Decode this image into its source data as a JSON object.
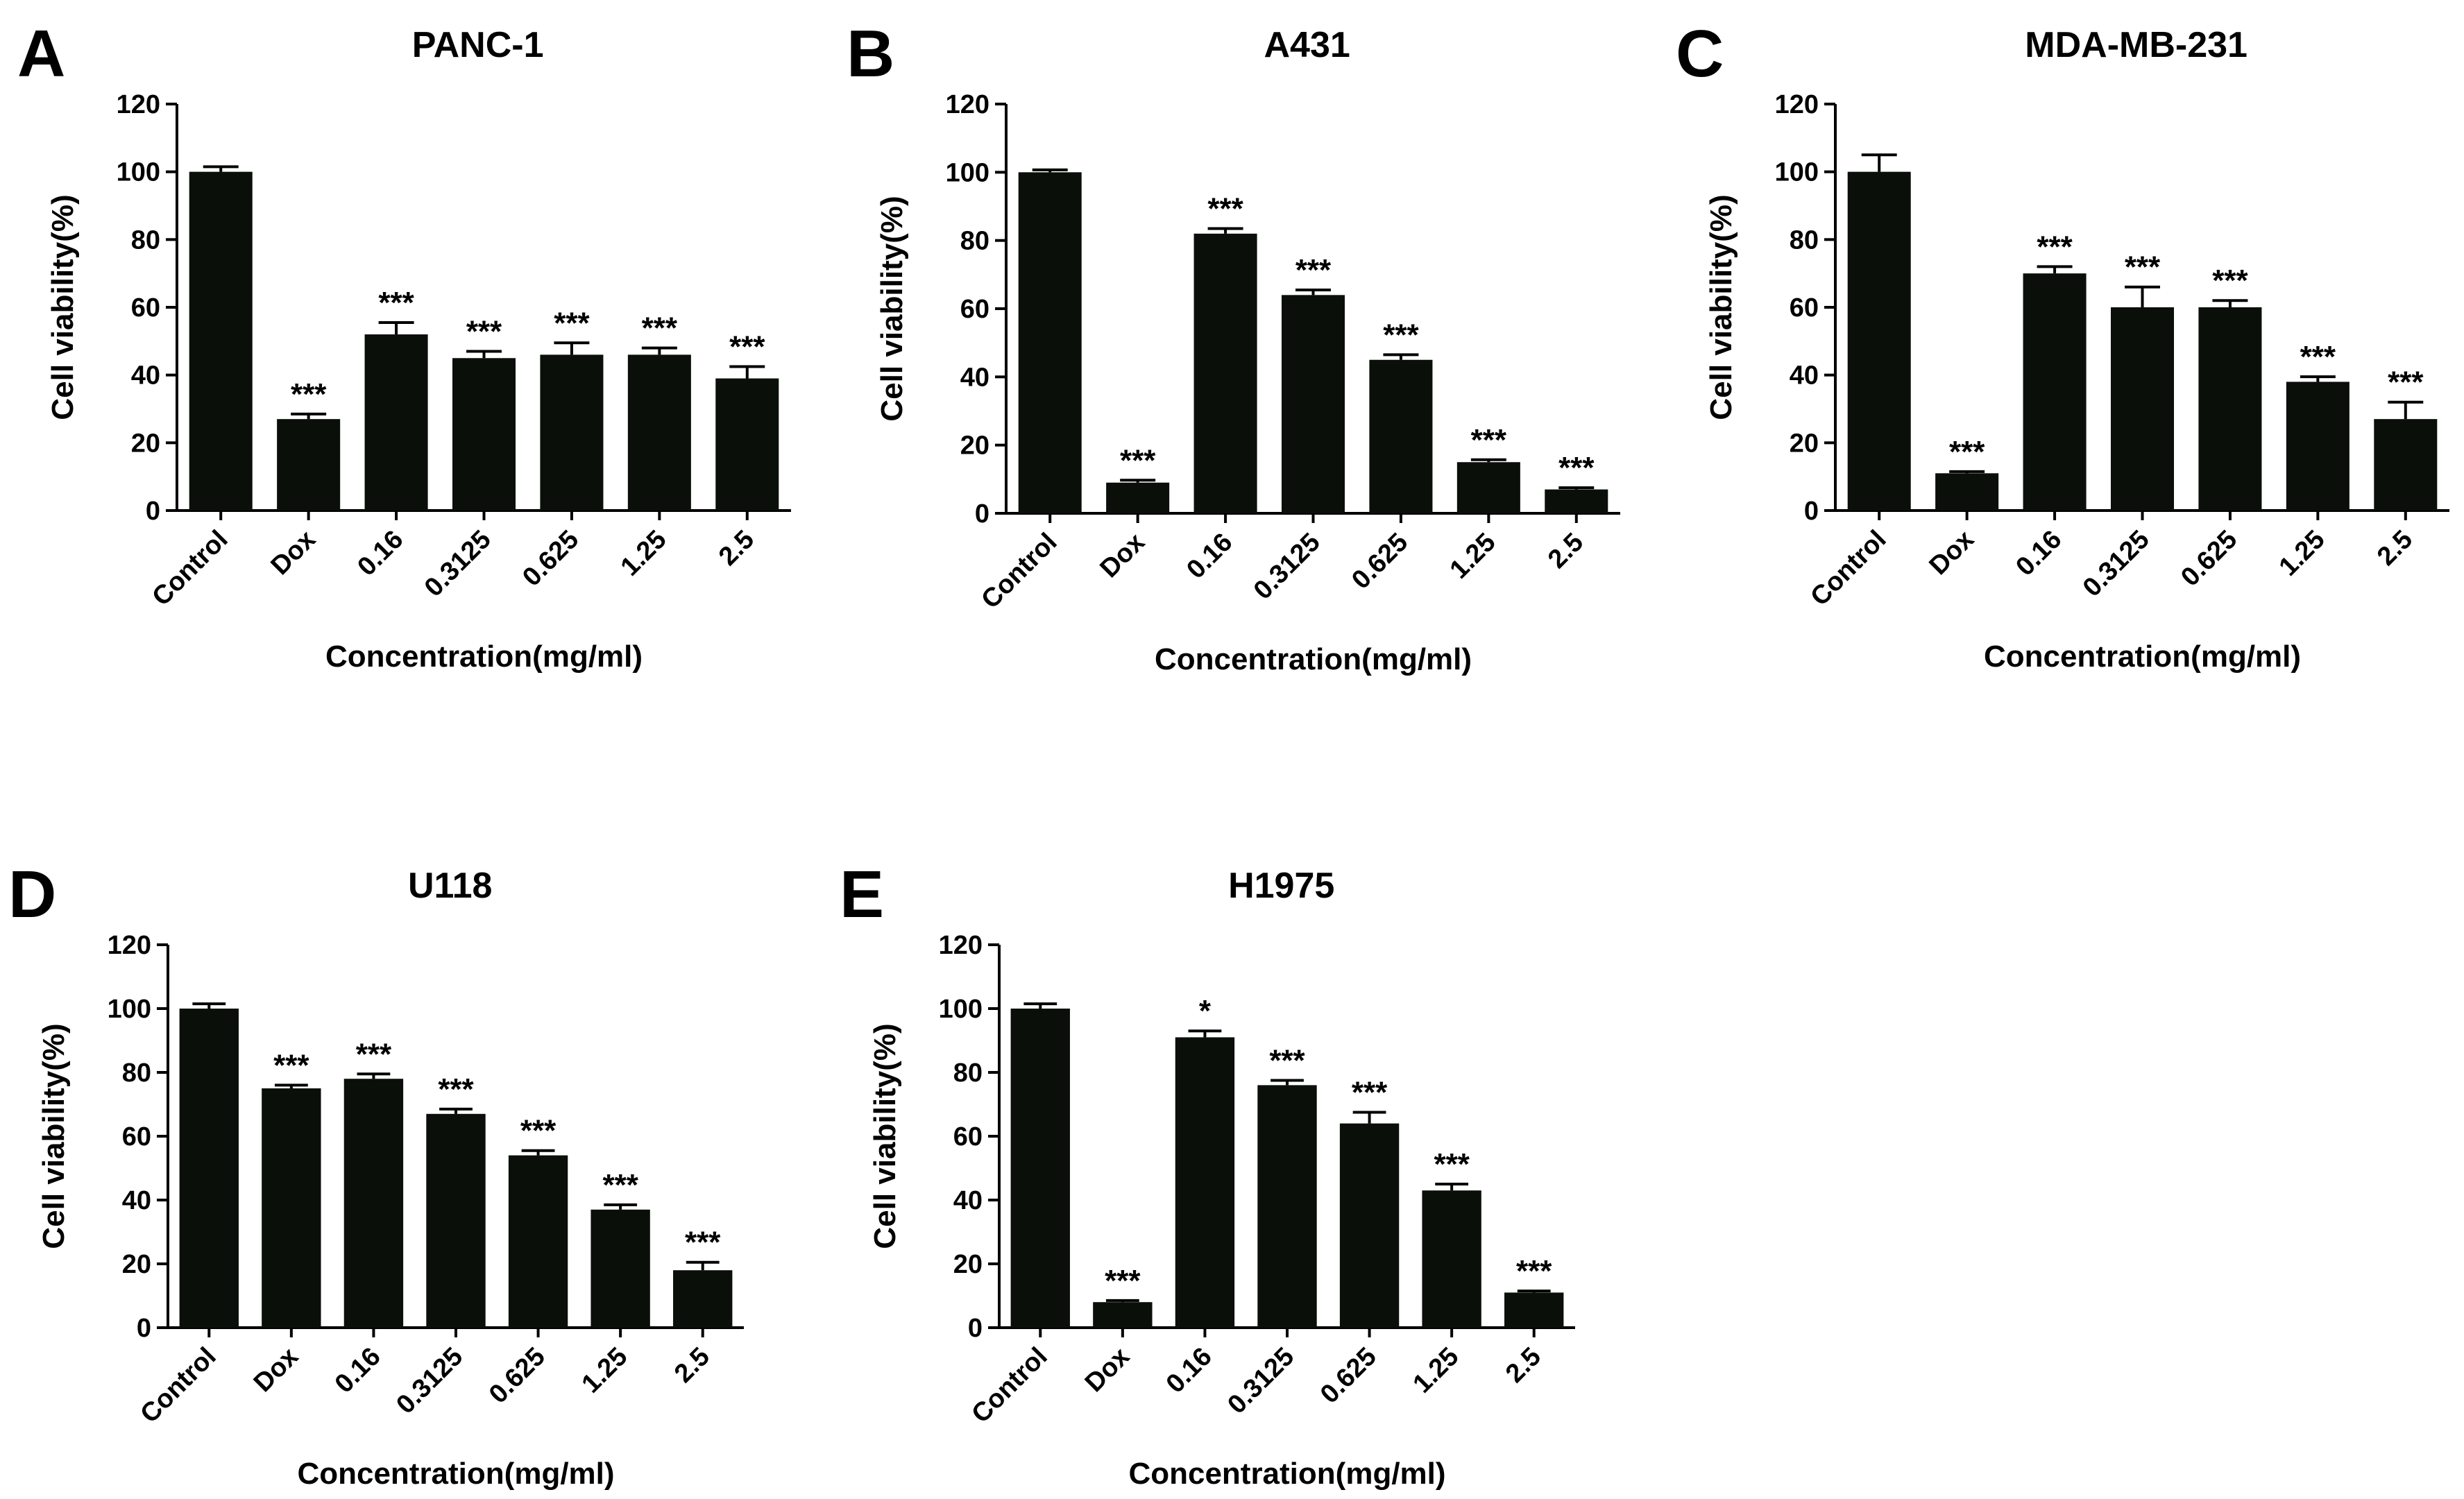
{
  "figure": {
    "chart_data": [
      {
        "type": "bar",
        "panel": "A",
        "title": "PANC-1",
        "xlabel": "Concentration(mg/ml)",
        "ylabel": "Cell viability(%)",
        "ylim": [
          0,
          120
        ],
        "yticks": [
          "0",
          "20",
          "40",
          "60",
          "80",
          "100",
          "120"
        ],
        "categories": [
          "Control",
          "Dox",
          "0.16",
          "0.3125",
          "0.625",
          "1.25",
          "2.5"
        ],
        "values": [
          100,
          27,
          52,
          45,
          46,
          46,
          39
        ],
        "errors": [
          1.5,
          1.5,
          3.5,
          2,
          3.5,
          2,
          3.5
        ],
        "significance": [
          "",
          "***",
          "***",
          "***",
          "***",
          "***",
          "***"
        ]
      },
      {
        "type": "bar",
        "panel": "B",
        "title": "A431",
        "xlabel": "Concentration(mg/ml)",
        "ylabel": "Cell viability(%)",
        "ylim": [
          0,
          120
        ],
        "yticks": [
          "0",
          "20",
          "40",
          "60",
          "80",
          "100",
          "120"
        ],
        "categories": [
          "Control",
          "Dox",
          "0.16",
          "0.3125",
          "0.625",
          "1.25",
          "2.5"
        ],
        "values": [
          100,
          9,
          82,
          64,
          45,
          15,
          7
        ],
        "errors": [
          0.7,
          0.7,
          1.5,
          1.5,
          1.5,
          0.7,
          0.5
        ],
        "significance": [
          "",
          "***",
          "***",
          "***",
          "***",
          "***",
          "***"
        ]
      },
      {
        "type": "bar",
        "panel": "C",
        "title": "MDA-MB-231",
        "xlabel": "Concentration(mg/ml)",
        "ylabel": "Cell viability(%)",
        "ylim": [
          0,
          120
        ],
        "yticks": [
          "0",
          "20",
          "40",
          "60",
          "80",
          "100",
          "120"
        ],
        "categories": [
          "Control",
          "Dox",
          "0.16",
          "0.3125",
          "0.625",
          "1.25",
          "2.5"
        ],
        "values": [
          100,
          11,
          70,
          60,
          60,
          38,
          27
        ],
        "errors": [
          5,
          0.5,
          2,
          6,
          2,
          1.5,
          5
        ],
        "significance": [
          "",
          "***",
          "***",
          "***",
          "***",
          "***",
          "***"
        ]
      },
      {
        "type": "bar",
        "panel": "D",
        "title": "U118",
        "xlabel": "Concentration(mg/ml)",
        "ylabel": "Cell viability(%)",
        "ylim": [
          0,
          120
        ],
        "yticks": [
          "0",
          "20",
          "40",
          "60",
          "80",
          "100",
          "120"
        ],
        "categories": [
          "Control",
          "Dox",
          "0.16",
          "0.3125",
          "0.625",
          "1.25",
          "2.5"
        ],
        "values": [
          100,
          75,
          78,
          67,
          54,
          37,
          18
        ],
        "errors": [
          1.5,
          1,
          1.5,
          1.5,
          1.5,
          1.5,
          2.5
        ],
        "significance": [
          "",
          "***",
          "***",
          "***",
          "***",
          "***",
          "***"
        ]
      },
      {
        "type": "bar",
        "panel": "E",
        "title": "H1975",
        "xlabel": "Concentration(mg/ml)",
        "ylabel": "Cell viability(%)",
        "ylim": [
          0,
          120
        ],
        "yticks": [
          "0",
          "20",
          "40",
          "60",
          "80",
          "100",
          "120"
        ],
        "categories": [
          "Control",
          "Dox",
          "0.16",
          "0.3125",
          "0.625",
          "1.25",
          "2.5"
        ],
        "values": [
          100,
          8,
          91,
          76,
          64,
          43,
          11
        ],
        "errors": [
          1.5,
          0.5,
          2,
          1.5,
          3.5,
          2,
          0.5
        ],
        "significance": [
          "",
          "***",
          "*",
          "***",
          "***",
          "***",
          "***"
        ]
      }
    ]
  }
}
